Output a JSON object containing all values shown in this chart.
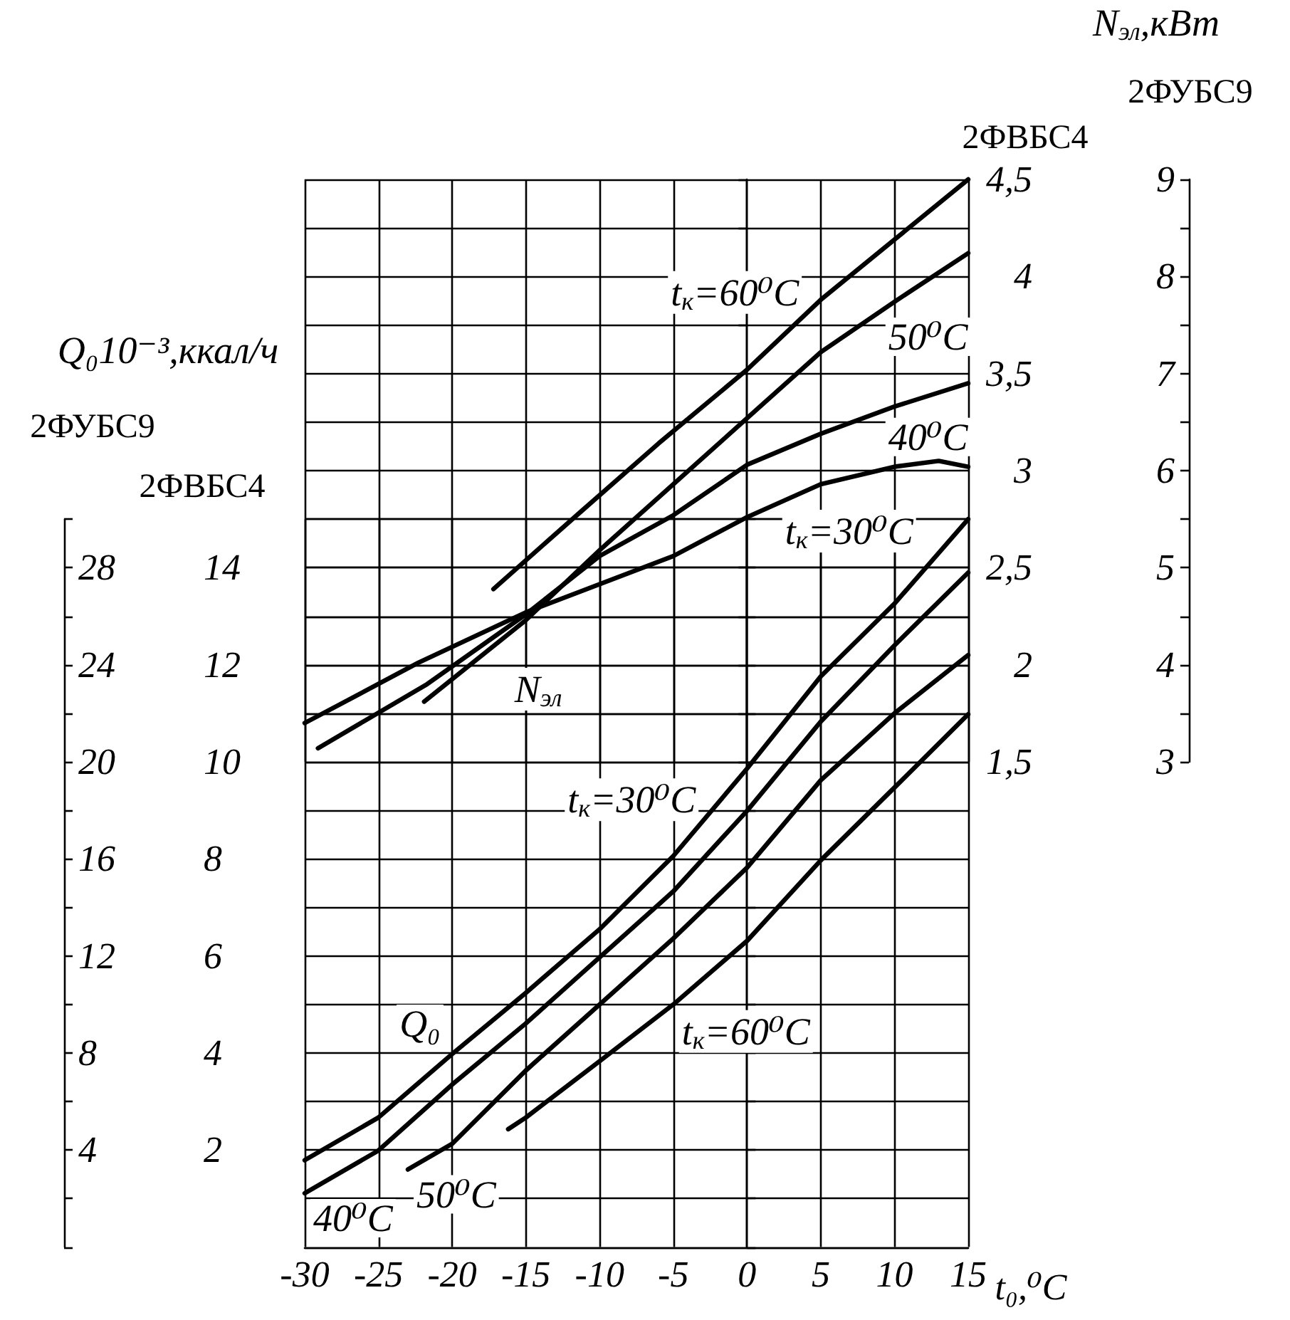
{
  "chart_data": [
    {
      "type": "line",
      "xlabel": "t₀,⁰C",
      "ylabel": "2ФВБС4",
      "y2label": "2ФУБС9",
      "annotations": [
        "Q₀10⁻³,ккал/ч",
        "Q₀"
      ],
      "xlim": [
        -30,
        15
      ],
      "xticks": [
        -30,
        -25,
        -20,
        -15,
        -10,
        -5,
        0,
        5,
        10,
        15
      ],
      "ylim": [
        0,
        15
      ],
      "yticks": [
        {
          "value": 0,
          "label": null
        },
        {
          "value": 1,
          "label": null
        },
        2,
        {
          "value": 3,
          "label": null
        },
        4,
        {
          "value": 5,
          "label": null
        },
        6,
        {
          "value": 7,
          "label": null
        },
        8,
        {
          "value": 9,
          "label": null
        },
        10,
        {
          "value": 11,
          "label": null
        },
        12,
        {
          "value": 13,
          "label": null
        },
        14,
        {
          "value": 15,
          "label": null
        }
      ],
      "y2lim": [
        0,
        30
      ],
      "y2ticks": [
        {
          "value": 0,
          "label": null
        },
        {
          "value": 2,
          "label": null
        },
        4,
        {
          "value": 6,
          "label": null
        },
        8,
        {
          "value": 10,
          "label": null
        },
        12,
        {
          "value": 14,
          "label": null
        },
        16,
        {
          "value": 18,
          "label": null
        },
        20,
        {
          "value": 22,
          "label": null
        },
        24,
        {
          "value": 26,
          "label": null
        },
        28,
        {
          "value": 30,
          "label": null
        }
      ],
      "grid": true,
      "marker": "none",
      "line_style": "solid",
      "series": [
        {
          "name": "t$_{к}$=30⁰C",
          "color": "#000000",
          "x": [
            -30,
            -25,
            -20,
            -15,
            -10,
            -5,
            0,
            5,
            10,
            15
          ],
          "values": [
            1.79,
            2.67,
            3.98,
            5.24,
            6.55,
            8.06,
            9.86,
            11.76,
            13.26,
            15
          ]
        },
        {
          "name": "40⁰C",
          "color": "#000000",
          "x": [
            -30,
            -25,
            -20,
            -15,
            -10,
            -5,
            0,
            5,
            10,
            15
          ],
          "values": [
            1.11,
            1.99,
            3.35,
            4.61,
            5.97,
            7.33,
            8.99,
            10.83,
            12.4,
            13.9
          ]
        },
        {
          "name": "50⁰C",
          "color": "#000000",
          "x": [
            -23,
            -20,
            -15,
            -10,
            -5,
            0,
            5,
            10,
            15
          ],
          "values": [
            1.6,
            2.13,
            3.64,
            5,
            6.36,
            7.82,
            9.62,
            11,
            12.2
          ]
        },
        {
          "name": "t$_{к}$=60⁰C",
          "color": "#000000",
          "x": [
            -16.2,
            -15,
            -10,
            -5,
            0,
            5,
            10,
            15
          ],
          "values": [
            2.43,
            2.67,
            3.83,
            5,
            6.31,
            7.97,
            9.47,
            10.98
          ]
        }
      ]
    },
    {
      "type": "line",
      "ylabel": "2ФВБС4",
      "y2label": "2ФУБС9",
      "annotations": [
        "N$_{эл}$,кВт",
        "N$_{эл}$"
      ],
      "xlim": [
        -30,
        15
      ],
      "tick_labels": "y",
      "ylim": [
        1.5,
        4.5
      ],
      "yticks": [
        {
          "value": 1.5,
          "label": "1,5"
        },
        {
          "value": 1.75,
          "label": null
        },
        2,
        {
          "value": 2.25,
          "label": null
        },
        {
          "value": 2.5,
          "label": "2,5"
        },
        {
          "value": 2.75,
          "label": null
        },
        3,
        {
          "value": 3.25,
          "label": null
        },
        {
          "value": 3.5,
          "label": "3,5"
        },
        {
          "value": 3.75,
          "label": null
        },
        4,
        {
          "value": 4.25,
          "label": null
        },
        {
          "value": 4.5,
          "label": "4,5"
        }
      ],
      "y2lim": [
        3,
        9
      ],
      "y2ticks": [
        3,
        {
          "value": 3.5,
          "label": null
        },
        4,
        {
          "value": 4.5,
          "label": null
        },
        5,
        {
          "value": 5.5,
          "label": null
        },
        6,
        {
          "value": 6.5,
          "label": null
        },
        7,
        {
          "value": 7.5,
          "label": null
        },
        8,
        {
          "value": 8.5,
          "label": null
        },
        9
      ],
      "grid": true,
      "marker": "none",
      "line_style": "solid",
      "series": [
        {
          "name": "t$_{к}$=60⁰C",
          "color": "#000000",
          "x": [
            -17.2,
            -11.4,
            -6,
            0,
            5,
            10,
            15
          ],
          "values": [
            2.39,
            2.78,
            3.14,
            3.52,
            3.88,
            4.19,
            4.5
          ]
        },
        {
          "name": "50⁰C",
          "color": "#000000",
          "x": [
            -21.9,
            -15,
            -10,
            -5,
            0,
            5,
            10,
            15
          ],
          "values": [
            1.81,
            2.23,
            2.59,
            2.93,
            3.27,
            3.61,
            3.87,
            4.12
          ]
        },
        {
          "name": "40⁰C",
          "color": "#000000",
          "x": [
            -29.1,
            -21.7,
            -15,
            -10,
            -5,
            0,
            5,
            10,
            15
          ],
          "values": [
            1.57,
            1.9,
            2.26,
            2.56,
            2.77,
            3.03,
            3.19,
            3.33,
            3.45
          ]
        },
        {
          "name": "t$_{к}$=30⁰C",
          "color": "#000000",
          "x": [
            -30,
            -22.3,
            -15,
            -5,
            0,
            5,
            10,
            13,
            15
          ],
          "values": [
            1.7,
            2.01,
            2.27,
            2.56,
            2.76,
            2.93,
            3.02,
            3.05,
            3.02
          ]
        }
      ]
    }
  ]
}
